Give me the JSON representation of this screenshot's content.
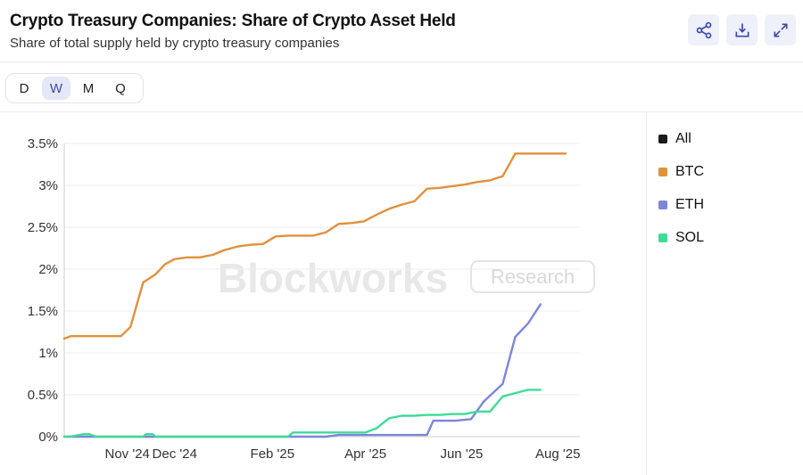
{
  "header": {
    "title": "Crypto Treasury Companies: Share of Crypto Asset Held",
    "subtitle": "Share of total supply held by crypto treasury companies"
  },
  "actions": [
    {
      "icon": "share-icon"
    },
    {
      "icon": "download-icon"
    },
    {
      "icon": "expand-icon"
    }
  ],
  "range_selector": {
    "options": [
      "D",
      "W",
      "M",
      "Q"
    ],
    "selected": "W"
  },
  "watermark": {
    "brand": "Blockworks",
    "badge": "Research"
  },
  "colors": {
    "All": "#1a1a1a",
    "BTC": "#e0913c",
    "ETH": "#7b86d9",
    "SOL": "#3ddc97",
    "accent": "#3d49a8"
  },
  "chart_data": {
    "type": "line",
    "title": "Crypto Treasury Companies: Share of Crypto Asset Held",
    "subtitle": "Share of total supply held by crypto treasury companies",
    "xlabel": "",
    "ylabel": "",
    "x_range": [
      "2024-09-22",
      "2025-08-15"
    ],
    "ylim": [
      0,
      3.5
    ],
    "yticks": [
      0,
      0.5,
      1,
      1.5,
      2,
      2.5,
      3,
      3.5
    ],
    "ytick_labels": [
      "0%",
      "0.5%",
      "1%",
      "1.5%",
      "2%",
      "2.5%",
      "3%",
      "3.5%"
    ],
    "xticks": [
      {
        "date": "2024-11-01",
        "label": "Nov '24"
      },
      {
        "date": "2024-12-01",
        "label": "Dec '24"
      },
      {
        "date": "2025-02-01",
        "label": "Feb '25"
      },
      {
        "date": "2025-04-01",
        "label": "Apr '25"
      },
      {
        "date": "2025-06-01",
        "label": "Jun '25"
      },
      {
        "date": "2025-08-01",
        "label": "Aug '25"
      }
    ],
    "grid": "horizontal",
    "legend_position": "right",
    "legend": [
      "All",
      "BTC",
      "ETH",
      "SOL"
    ],
    "series": [
      {
        "name": "BTC",
        "x": [
          "2024-09-22",
          "2024-09-26",
          "2024-10-04",
          "2024-10-12",
          "2024-10-20",
          "2024-10-26",
          "2024-10-28",
          "2024-11-03",
          "2024-11-11",
          "2024-11-19",
          "2024-11-25",
          "2024-12-01",
          "2024-12-09",
          "2024-12-17",
          "2024-12-25",
          "2025-01-02",
          "2025-01-10",
          "2025-01-18",
          "2025-01-26",
          "2025-02-03",
          "2025-02-11",
          "2025-02-19",
          "2025-02-27",
          "2025-03-07",
          "2025-03-15",
          "2025-03-23",
          "2025-03-31",
          "2025-04-08",
          "2025-04-16",
          "2025-04-24",
          "2025-05-02",
          "2025-05-10",
          "2025-05-18",
          "2025-05-26",
          "2025-06-03",
          "2025-06-11",
          "2025-06-19",
          "2025-06-27",
          "2025-07-05",
          "2025-07-13",
          "2025-07-21",
          "2025-07-29",
          "2025-08-06"
        ],
        "y": [
          1.17,
          1.2,
          1.2,
          1.2,
          1.2,
          1.2,
          1.2,
          1.31,
          1.84,
          1.94,
          2.06,
          2.12,
          2.14,
          2.14,
          2.17,
          2.23,
          2.27,
          2.29,
          2.3,
          2.39,
          2.4,
          2.4,
          2.4,
          2.44,
          2.54,
          2.55,
          2.57,
          2.65,
          2.72,
          2.77,
          2.81,
          2.96,
          2.97,
          2.99,
          3.01,
          3.04,
          3.06,
          3.11,
          3.38,
          3.38,
          3.38,
          3.38,
          3.38
        ]
      },
      {
        "name": "ETH",
        "x": [
          "2024-09-22",
          "2025-03-07",
          "2025-03-15",
          "2025-05-10",
          "2025-05-14",
          "2025-05-28",
          "2025-06-07",
          "2025-06-15",
          "2025-06-27",
          "2025-07-05",
          "2025-07-13",
          "2025-07-21"
        ],
        "y": [
          0,
          0,
          0.02,
          0.02,
          0.19,
          0.19,
          0.21,
          0.42,
          0.63,
          1.19,
          1.35,
          1.58
        ]
      },
      {
        "name": "SOL",
        "x": [
          "2024-09-22",
          "2024-09-26",
          "2024-10-04",
          "2024-10-08",
          "2024-10-12",
          "2024-11-11",
          "2024-11-13",
          "2024-11-17",
          "2024-11-19",
          "2025-02-11",
          "2025-02-14",
          "2025-03-15",
          "2025-04-01",
          "2025-04-08",
          "2025-04-16",
          "2025-04-24",
          "2025-05-02",
          "2025-05-10",
          "2025-05-18",
          "2025-05-26",
          "2025-06-03",
          "2025-06-11",
          "2025-06-19",
          "2025-06-27",
          "2025-07-05",
          "2025-07-13",
          "2025-07-21"
        ],
        "y": [
          0,
          0,
          0.03,
          0.03,
          0,
          0,
          0.03,
          0.03,
          0,
          0,
          0.05,
          0.05,
          0.05,
          0.1,
          0.22,
          0.25,
          0.25,
          0.26,
          0.26,
          0.27,
          0.27,
          0.3,
          0.3,
          0.48,
          0.52,
          0.56,
          0.56
        ]
      }
    ]
  }
}
